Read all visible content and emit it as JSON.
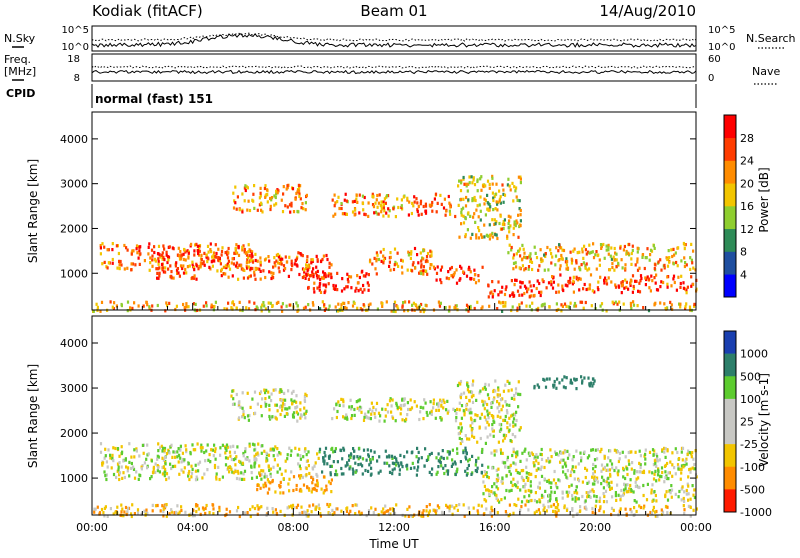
{
  "header": {
    "station": "Kodiak (fitACF)",
    "beam": "Beam 01",
    "date": "14/Aug/2010"
  },
  "top_panels": {
    "noise": {
      "left_label": "N.Sky",
      "right_label": "N.Search",
      "left_ticks": [
        "10^5",
        "10^0"
      ],
      "right_ticks": [
        "10^5",
        "10^0"
      ]
    },
    "freq": {
      "left_label_line1": "Freq.",
      "left_label_line2": "[MHz]",
      "right_label": "Nave",
      "left_ticks": [
        "18",
        "8"
      ],
      "right_ticks": [
        "60",
        "0"
      ]
    },
    "cpid": {
      "label": "CPID",
      "mode": "normal (fast) 151"
    }
  },
  "chart_data": [
    {
      "type": "heatmap",
      "title": "",
      "quantity": "Power",
      "ylabel": "Slant Range [km]",
      "xlabel": "",
      "ylim": [
        180,
        4600
      ],
      "xlim": [
        0,
        24
      ],
      "y_ticks": [
        "1000",
        "2000",
        "3000",
        "4000"
      ],
      "colorbar": {
        "label": "Power [dB]",
        "ticks": [
          "4",
          "8",
          "12",
          "16",
          "20",
          "24",
          "28"
        ],
        "range": [
          0,
          30
        ],
        "colors": [
          "#0000ff",
          "#1f4fa0",
          "#2e8b57",
          "#8fce2f",
          "#f2c500",
          "#ff8c00",
          "#ff3c00",
          "#ff0000"
        ]
      },
      "bands": [
        {
          "t0": 0.3,
          "t1": 6.5,
          "r0": 1100,
          "r1": 1700,
          "level": 22
        },
        {
          "t0": 2.5,
          "t1": 9.5,
          "r0": 900,
          "r1": 1500,
          "level": 24
        },
        {
          "t0": 8.5,
          "t1": 11.0,
          "r0": 600,
          "r1": 1100,
          "level": 28
        },
        {
          "t0": 11.0,
          "t1": 13.5,
          "r0": 1000,
          "r1": 1600,
          "level": 20
        },
        {
          "t0": 13.5,
          "t1": 15.5,
          "r0": 800,
          "r1": 1200,
          "level": 26
        },
        {
          "t0": 15.5,
          "t1": 18.0,
          "r0": 500,
          "r1": 900,
          "level": 27
        },
        {
          "t0": 18.0,
          "t1": 24.0,
          "r0": 600,
          "r1": 1000,
          "level": 24
        },
        {
          "t0": 16.5,
          "t1": 24.0,
          "r0": 1100,
          "r1": 1700,
          "level": 18
        },
        {
          "t0": 5.5,
          "t1": 8.5,
          "r0": 2400,
          "r1": 3000,
          "level": 20
        },
        {
          "t0": 9.5,
          "t1": 14.5,
          "r0": 2300,
          "r1": 2800,
          "level": 21
        },
        {
          "t0": 14.5,
          "t1": 17.0,
          "r0": 1800,
          "r1": 3200,
          "level": 16
        },
        {
          "t0": 0.0,
          "t1": 24.0,
          "r0": 180,
          "r1": 400,
          "level": 18
        }
      ]
    },
    {
      "type": "heatmap",
      "title": "",
      "quantity": "Velocity",
      "ylabel": "Slant Range [km]",
      "xlabel": "Time UT",
      "ylim": [
        180,
        4600
      ],
      "xlim": [
        0,
        24
      ],
      "y_ticks": [
        "1000",
        "2000",
        "3000",
        "4000"
      ],
      "x_ticks": [
        "00:00",
        "04:00",
        "08:00",
        "12:00",
        "16:00",
        "20:00",
        "00:00"
      ],
      "colorbar": {
        "label": "Velocity [m s-1]",
        "ticks": [
          "1000",
          "500",
          "100",
          "25",
          "-25",
          "-100",
          "-500",
          "-1000"
        ],
        "colors": [
          "#1a3fb0",
          "#2d7f6a",
          "#5dcc2f",
          "#c8c8c4",
          "#c8c8c4",
          "#f2c500",
          "#ff8c00",
          "#ff1a00"
        ]
      },
      "bands": [
        {
          "t0": 0.3,
          "t1": 9.0,
          "r0": 1000,
          "r1": 1800,
          "value": 0
        },
        {
          "t0": 9.0,
          "t1": 15.5,
          "r0": 1100,
          "r1": 1700,
          "value": 150
        },
        {
          "t0": 5.5,
          "t1": 8.5,
          "r0": 2300,
          "r1": 3000,
          "value": 0
        },
        {
          "t0": 9.5,
          "t1": 14.5,
          "r0": 2300,
          "r1": 2800,
          "value": 0
        },
        {
          "t0": 14.5,
          "t1": 17.0,
          "r0": 1800,
          "r1": 3200,
          "value": 0
        },
        {
          "t0": 15.5,
          "t1": 24.0,
          "r0": 500,
          "r1": 1700,
          "value": 0
        },
        {
          "t0": 0.0,
          "t1": 24.0,
          "r0": 180,
          "r1": 450,
          "value": -60
        },
        {
          "t0": 6.5,
          "t1": 9.5,
          "r0": 700,
          "r1": 1100,
          "value": -120
        },
        {
          "t0": 17.5,
          "t1": 20.0,
          "r0": 3000,
          "r1": 3300,
          "value": 200
        }
      ]
    }
  ]
}
